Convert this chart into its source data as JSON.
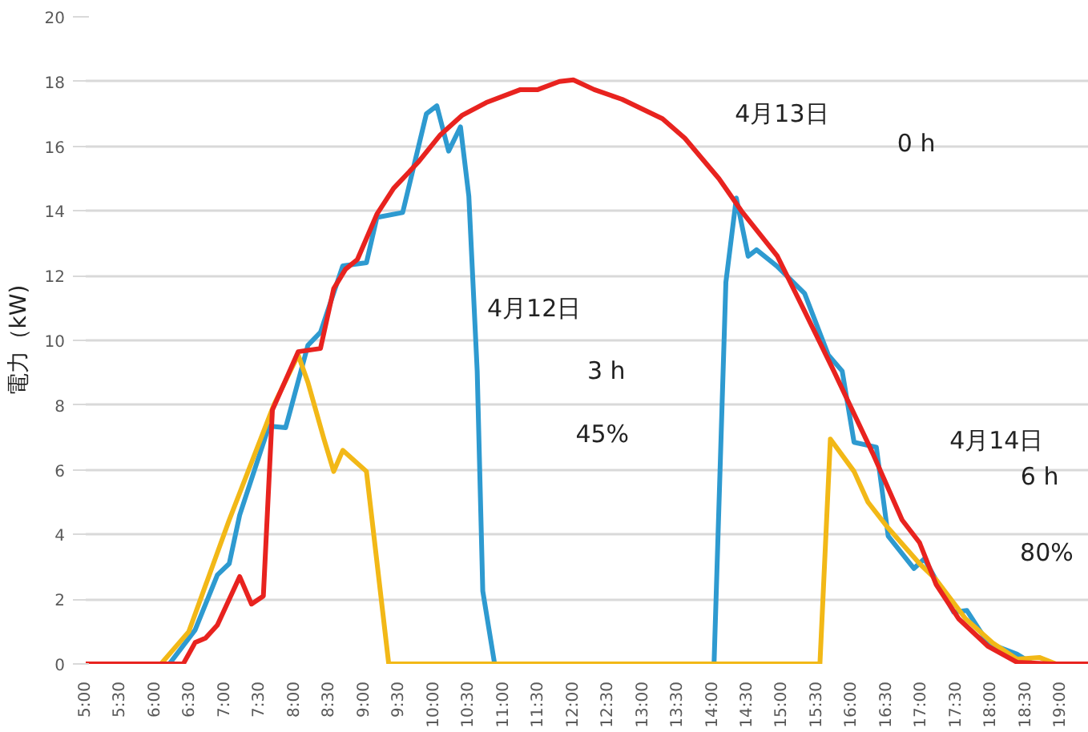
{
  "chart_data": {
    "type": "line",
    "ylabel": "電力（kW)",
    "xlim": [
      5,
      19.4
    ],
    "ylim": [
      0,
      20
    ],
    "xticks": [
      {
        "value": 5,
        "label": "5:00"
      },
      {
        "value": 5.5,
        "label": "5:30"
      },
      {
        "value": 6,
        "label": "6:00"
      },
      {
        "value": 6.5,
        "label": "6:30"
      },
      {
        "value": 7,
        "label": "7:00"
      },
      {
        "value": 7.5,
        "label": "7:30"
      },
      {
        "value": 8,
        "label": "8:00"
      },
      {
        "value": 8.5,
        "label": "8:30"
      },
      {
        "value": 9,
        "label": "9:00"
      },
      {
        "value": 9.5,
        "label": "9:30"
      },
      {
        "value": 10,
        "label": "10:00"
      },
      {
        "value": 10.5,
        "label": "10:30"
      },
      {
        "value": 11,
        "label": "11:00"
      },
      {
        "value": 11.5,
        "label": "11:30"
      },
      {
        "value": 12,
        "label": "12:00"
      },
      {
        "value": 12.5,
        "label": "12:30"
      },
      {
        "value": 13,
        "label": "13:00"
      },
      {
        "value": 13.5,
        "label": "13:30"
      },
      {
        "value": 14,
        "label": "14:00"
      },
      {
        "value": 14.5,
        "label": "14:30"
      },
      {
        "value": 15,
        "label": "15:00"
      },
      {
        "value": 15.5,
        "label": "15:30"
      },
      {
        "value": 16,
        "label": "16:00"
      },
      {
        "value": 16.5,
        "label": "16:30"
      },
      {
        "value": 17,
        "label": "17:00"
      },
      {
        "value": 17.5,
        "label": "17:30"
      },
      {
        "value": 18,
        "label": "18:00"
      },
      {
        "value": 18.5,
        "label": "18:30"
      },
      {
        "value": 19,
        "label": "19:00"
      }
    ],
    "yticks": [
      0,
      2,
      4,
      6,
      8,
      10,
      12,
      14,
      16,
      18,
      20
    ],
    "grid": "y",
    "marker": "none",
    "line_style": "solid",
    "series": [
      {
        "color": "#2e9ad0",
        "x": [
          5,
          6.2,
          6.57,
          6.89,
          7.06,
          7.21,
          7.63,
          7.87,
          8.19,
          8.37,
          8.69,
          9.03,
          9.18,
          9.55,
          9.89,
          10.04,
          10.21,
          10.38,
          10.5,
          10.62,
          10.7,
          10.87,
          14.02,
          14.19,
          14.34,
          14.51,
          14.63,
          14.92,
          15.32,
          15.66,
          15.86,
          16.03,
          16.35,
          16.52,
          16.89,
          17.04,
          17.46,
          17.65,
          17.95,
          18.37,
          18.6,
          19.4
        ],
        "values": [
          0,
          0,
          1.05,
          2.75,
          3.1,
          4.6,
          7.35,
          7.3,
          9.85,
          10.25,
          12.3,
          12.4,
          13.8,
          13.95,
          17.0,
          17.25,
          15.85,
          16.6,
          14.45,
          9.05,
          2.25,
          0,
          0,
          11.8,
          14.4,
          12.6,
          12.8,
          12.3,
          11.45,
          9.55,
          9.05,
          6.85,
          6.7,
          3.95,
          2.95,
          3.25,
          1.6,
          1.65,
          0.65,
          0.3,
          0,
          0
        ]
      },
      {
        "color": "#f2b817",
        "x": [
          5,
          6.08,
          6.48,
          7.06,
          7.7,
          8.05,
          8.19,
          8.42,
          8.56,
          8.69,
          9.03,
          9.35,
          15.54,
          15.69,
          16.03,
          16.23,
          16.52,
          16.97,
          17.21,
          17.63,
          18.02,
          18.37,
          18.69,
          18.93,
          19.4
        ],
        "values": [
          0,
          0,
          1.0,
          4.45,
          8.0,
          9.55,
          8.7,
          6.95,
          5.95,
          6.6,
          5.95,
          0,
          0,
          6.95,
          5.95,
          5.0,
          4.2,
          3.1,
          2.6,
          1.4,
          0.65,
          0.15,
          0.2,
          0,
          0
        ]
      },
      {
        "color": "#e8231f",
        "x": [
          5,
          6.4,
          6.57,
          6.72,
          6.89,
          7.21,
          7.38,
          7.55,
          7.68,
          8.05,
          8.37,
          8.56,
          8.73,
          8.9,
          9.18,
          9.42,
          9.77,
          10.09,
          10.4,
          10.75,
          11.24,
          11.49,
          11.8,
          12.0,
          12.3,
          12.7,
          13.28,
          13.6,
          14.09,
          14.43,
          14.93,
          15.32,
          15.74,
          16.3,
          16.72,
          16.97,
          17.21,
          17.53,
          17.95,
          18.37,
          18.86,
          19.4
        ],
        "values": [
          0,
          0,
          0.66,
          0.8,
          1.2,
          2.7,
          1.85,
          2.1,
          7.85,
          9.65,
          9.75,
          11.6,
          12.2,
          12.5,
          13.9,
          14.7,
          15.5,
          16.35,
          16.95,
          17.35,
          17.75,
          17.75,
          18.0,
          18.05,
          17.75,
          17.45,
          16.85,
          16.25,
          15.0,
          13.95,
          12.6,
          10.9,
          9.05,
          6.5,
          4.45,
          3.75,
          2.45,
          1.4,
          0.55,
          0.05,
          0,
          0
        ]
      }
    ],
    "annotations": [
      "4月13日",
      "0 h",
      "4月12日",
      "3 h",
      "45%",
      "4月14日",
      "6 h",
      "80%"
    ]
  }
}
